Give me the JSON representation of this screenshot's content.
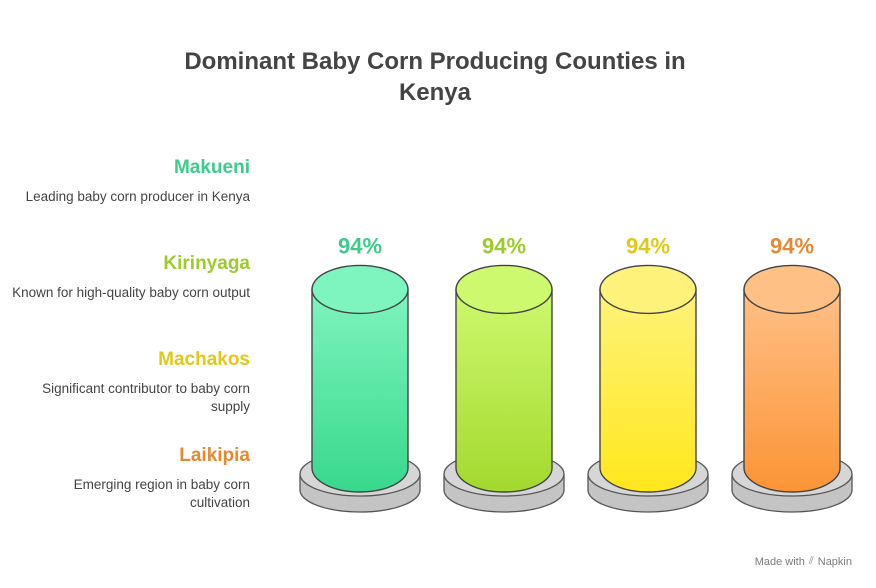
{
  "title": "Dominant Baby Corn Producing Counties in Kenya",
  "footer": {
    "made_with": "Made with",
    "brand": "Napkin"
  },
  "chart_data": {
    "type": "bar",
    "categories": [
      "Makueni",
      "Kirinyaga",
      "Machakos",
      "Laikipia"
    ],
    "values": [
      94,
      94,
      94,
      94
    ],
    "value_labels": [
      "94%",
      "94%",
      "94%",
      "94%"
    ],
    "descriptions": [
      "Leading baby corn producer in Kenya",
      "Known for high-quality baby corn output",
      "Significant contributor to baby corn supply",
      "Emerging region in baby corn cultivation"
    ],
    "colors": [
      "#3dcc8b",
      "#9bcc2c",
      "#e0c919",
      "#e58a34"
    ],
    "fill_top": [
      "#7ef4be",
      "#cdf96e",
      "#fff27a",
      "#ffc086"
    ],
    "fill_bottom": [
      "#38d88c",
      "#a3d92e",
      "#ffe81c",
      "#fb9436"
    ],
    "ylim": [
      0,
      100
    ]
  }
}
